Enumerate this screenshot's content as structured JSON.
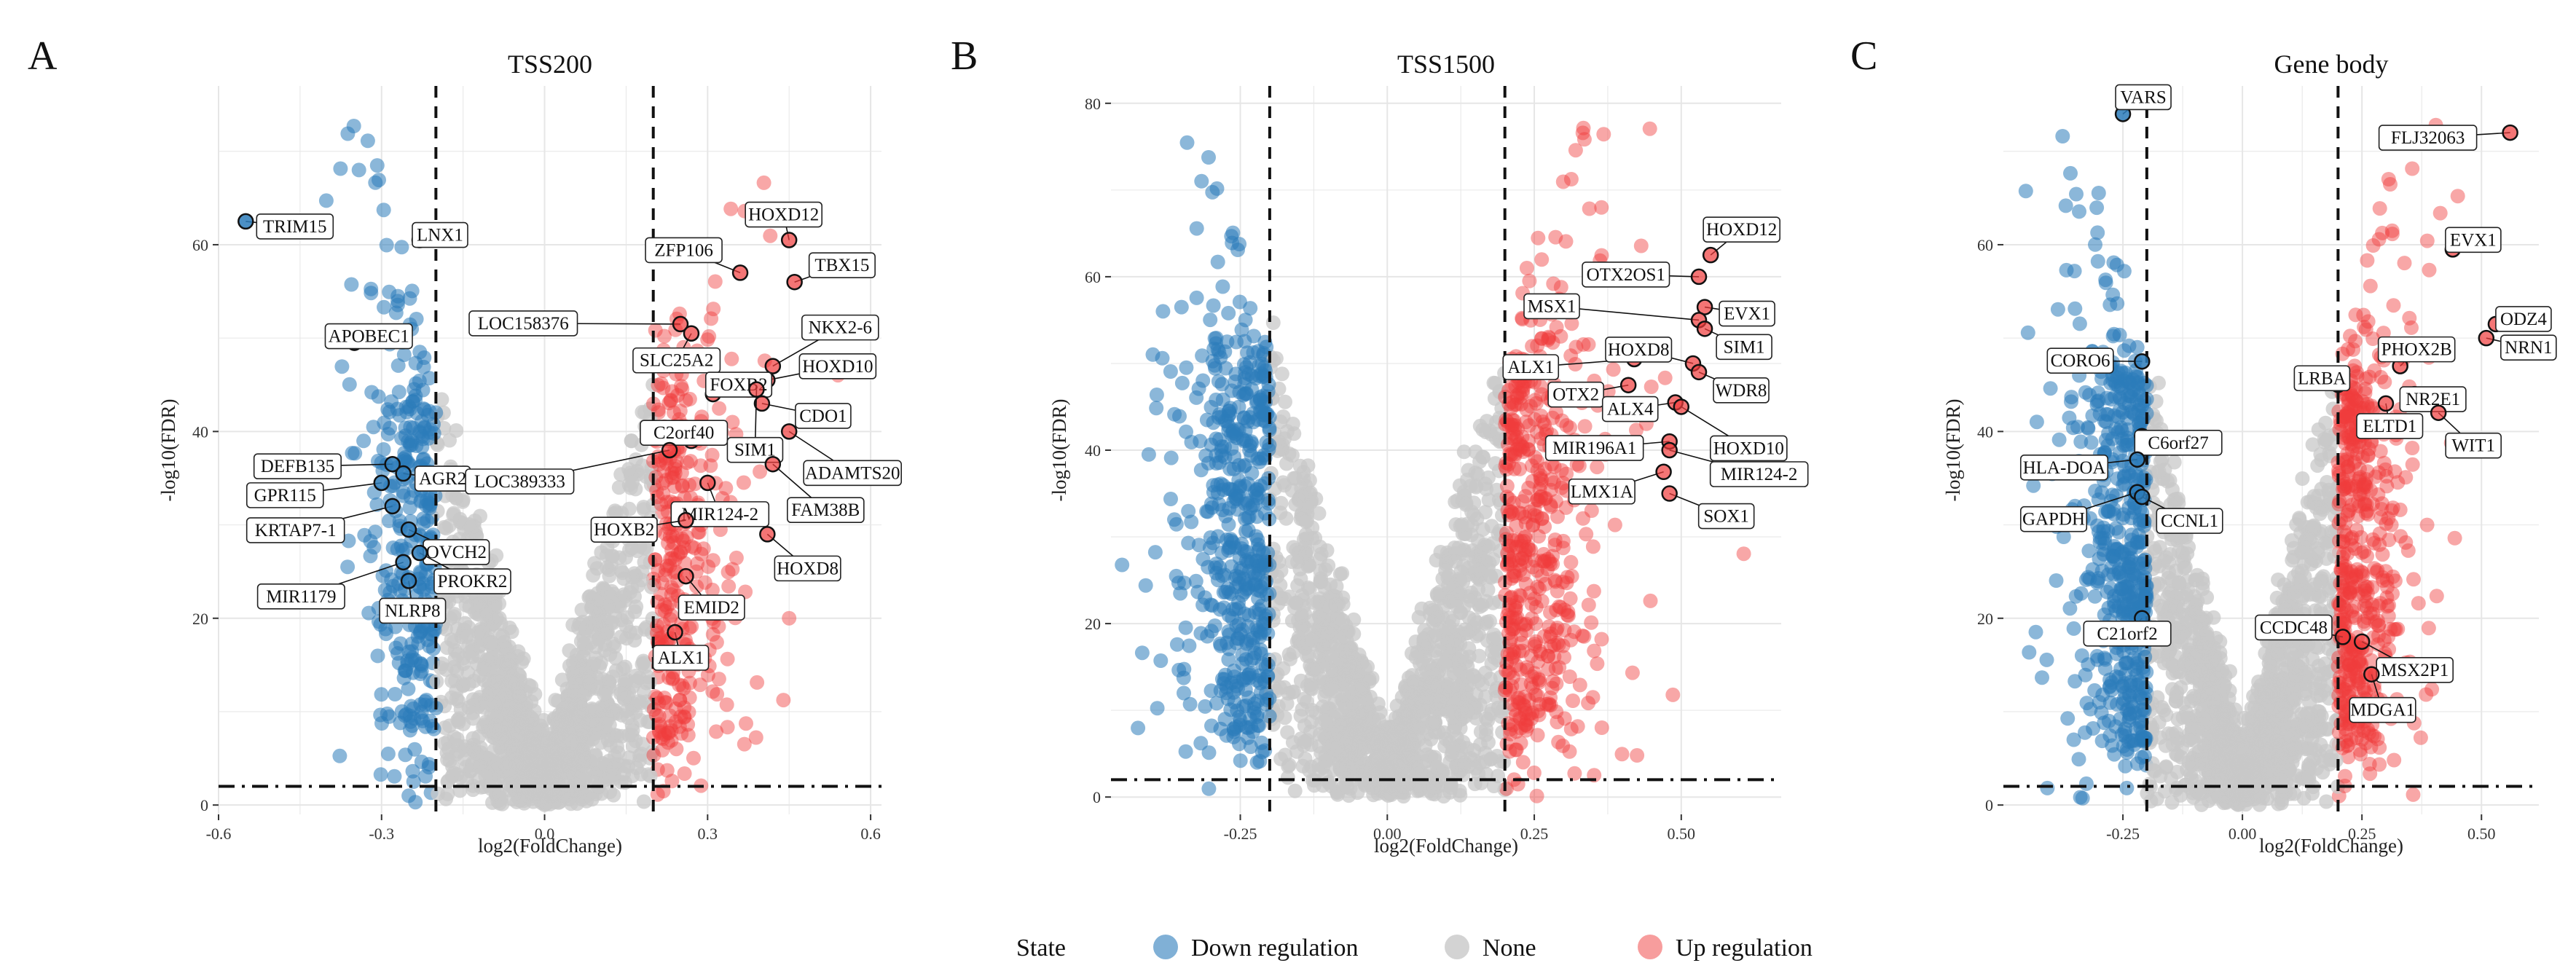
{
  "legend": {
    "title": "State",
    "items": [
      {
        "label": "Down regulation",
        "color": "#2b7bba"
      },
      {
        "label": "None",
        "color": "#c8c8c8"
      },
      {
        "label": "Up regulation",
        "color": "#f03b3b"
      }
    ]
  },
  "colors": {
    "down": "#2b7bba",
    "none": "#c8c8c8",
    "up": "#f03b3b"
  },
  "chart_data": [
    {
      "type": "scatter",
      "panel": "A",
      "title": "TSS200",
      "xlabel": "log2(FoldChange)",
      "ylabel": "-log10(FDR)",
      "xlim": [
        -0.6,
        0.62
      ],
      "ylim": [
        -1,
        77
      ],
      "xticks": [
        -0.6,
        -0.3,
        0.0,
        0.3,
        0.6
      ],
      "xtick_labels": [
        "-0.6",
        "-0.3",
        "0.0",
        "0.3",
        "0.6"
      ],
      "yticks": [
        0,
        20,
        40,
        60
      ],
      "yticks_labels": [
        "0",
        "20",
        "40",
        "60"
      ],
      "vlines": [
        -0.2,
        0.2
      ],
      "hline": 2,
      "grid": true,
      "labels": [
        {
          "text": "TRIM15",
          "x": -0.55,
          "y": 62.5,
          "state": "down"
        },
        {
          "text": "LNX1",
          "x": -0.23,
          "y": 60.5,
          "state": "down"
        },
        {
          "text": "APOBEC1",
          "x": -0.35,
          "y": 49.5,
          "state": "down"
        },
        {
          "text": "DEFB135",
          "x": -0.28,
          "y": 36.5,
          "state": "down"
        },
        {
          "text": "AGR2",
          "x": -0.26,
          "y": 35.5,
          "state": "down"
        },
        {
          "text": "GPR115",
          "x": -0.3,
          "y": 34.5,
          "state": "down"
        },
        {
          "text": "KRTAP7-1",
          "x": -0.28,
          "y": 32,
          "state": "down"
        },
        {
          "text": "OVCH2",
          "x": -0.25,
          "y": 29.5,
          "state": "down"
        },
        {
          "text": "MIR1179",
          "x": -0.26,
          "y": 26,
          "state": "down"
        },
        {
          "text": "PROKR2",
          "x": -0.23,
          "y": 27,
          "state": "down"
        },
        {
          "text": "NLRP8",
          "x": -0.25,
          "y": 24,
          "state": "down"
        },
        {
          "text": "HOXD12",
          "x": 0.45,
          "y": 60.5,
          "state": "up"
        },
        {
          "text": "TBX15",
          "x": 0.46,
          "y": 56,
          "state": "up"
        },
        {
          "text": "ZFP106",
          "x": 0.36,
          "y": 57,
          "state": "up"
        },
        {
          "text": "LOC158376",
          "x": 0.25,
          "y": 51.5,
          "state": "up"
        },
        {
          "text": "SLC25A2",
          "x": 0.27,
          "y": 50.5,
          "state": "up"
        },
        {
          "text": "NKX2-6",
          "x": 0.42,
          "y": 47,
          "state": "up"
        },
        {
          "text": "HOXD10",
          "x": 0.41,
          "y": 45.5,
          "state": "up"
        },
        {
          "text": "FOXB2",
          "x": 0.31,
          "y": 44,
          "state": "up"
        },
        {
          "text": "CDO1",
          "x": 0.4,
          "y": 43,
          "state": "up"
        },
        {
          "text": "C2orf40",
          "x": 0.27,
          "y": 39,
          "state": "up"
        },
        {
          "text": "SIM1",
          "x": 0.39,
          "y": 44.5,
          "state": "up"
        },
        {
          "text": "ADAMTS20",
          "x": 0.45,
          "y": 40,
          "state": "up"
        },
        {
          "text": "LOC389333",
          "x": 0.23,
          "y": 38,
          "state": "up"
        },
        {
          "text": "MIR124-2",
          "x": 0.3,
          "y": 34.5,
          "state": "up"
        },
        {
          "text": "FAM38B",
          "x": 0.42,
          "y": 36.5,
          "state": "up"
        },
        {
          "text": "HOXB2",
          "x": 0.26,
          "y": 30.5,
          "state": "up"
        },
        {
          "text": "HOXD8",
          "x": 0.41,
          "y": 29,
          "state": "up"
        },
        {
          "text": "EMID2",
          "x": 0.26,
          "y": 24.5,
          "state": "up"
        },
        {
          "text": "ALX1",
          "x": 0.24,
          "y": 18.5,
          "state": "up"
        }
      ]
    },
    {
      "type": "scatter",
      "panel": "B",
      "title": "TSS1500",
      "xlabel": "log2(FoldChange)",
      "ylabel": "-log10(FDR)",
      "xlim": [
        -0.47,
        0.67
      ],
      "ylim": [
        -2,
        82
      ],
      "xticks": [
        -0.25,
        0.0,
        0.25,
        0.5
      ],
      "xtick_labels": [
        "-0.25",
        "0.00",
        "0.25",
        "0.50"
      ],
      "yticks": [
        0,
        20,
        40,
        60,
        80
      ],
      "yticks_labels": [
        "0",
        "20",
        "40",
        "60",
        "80"
      ],
      "vlines": [
        -0.2,
        0.2
      ],
      "hline": 2,
      "grid": true,
      "labels": [
        {
          "text": "HOXD12",
          "x": 0.55,
          "y": 62.5,
          "state": "up"
        },
        {
          "text": "OTX2OS1",
          "x": 0.53,
          "y": 60,
          "state": "up"
        },
        {
          "text": "EVX1",
          "x": 0.54,
          "y": 56.5,
          "state": "up"
        },
        {
          "text": "MSX1",
          "x": 0.53,
          "y": 55,
          "state": "up"
        },
        {
          "text": "SIM1",
          "x": 0.54,
          "y": 54,
          "state": "up"
        },
        {
          "text": "ALX1",
          "x": 0.42,
          "y": 50.5,
          "state": "up"
        },
        {
          "text": "HOXD8",
          "x": 0.52,
          "y": 50,
          "state": "up"
        },
        {
          "text": "WDR8",
          "x": 0.53,
          "y": 49,
          "state": "up"
        },
        {
          "text": "OTX2",
          "x": 0.41,
          "y": 47.5,
          "state": "up"
        },
        {
          "text": "ALX4",
          "x": 0.49,
          "y": 45.5,
          "state": "up"
        },
        {
          "text": "HOXD10",
          "x": 0.5,
          "y": 45,
          "state": "up"
        },
        {
          "text": "MIR196A1",
          "x": 0.48,
          "y": 41,
          "state": "up"
        },
        {
          "text": "MIR124-2",
          "x": 0.48,
          "y": 40,
          "state": "up"
        },
        {
          "text": "LMX1A",
          "x": 0.47,
          "y": 37.5,
          "state": "up"
        },
        {
          "text": "SOX1",
          "x": 0.48,
          "y": 35,
          "state": "up"
        }
      ]
    },
    {
      "type": "scatter",
      "panel": "C",
      "title": "Gene body",
      "xlabel": "log2(FoldChange)",
      "ylabel": "-log10(FDR)",
      "xlim": [
        -0.5,
        0.62
      ],
      "ylim": [
        -1,
        77
      ],
      "xticks": [
        -0.25,
        0.0,
        0.25,
        0.5
      ],
      "xtick_labels": [
        "-0.25",
        "0.00",
        "0.25",
        "0.50"
      ],
      "yticks": [
        0,
        20,
        40,
        60
      ],
      "yticks_labels": [
        "0",
        "20",
        "40",
        "60"
      ],
      "vlines": [
        -0.2,
        0.2
      ],
      "hline": 2,
      "grid": true,
      "labels": [
        {
          "text": "VARS",
          "x": -0.25,
          "y": 74,
          "state": "down"
        },
        {
          "text": "CORO6",
          "x": -0.21,
          "y": 47.5,
          "state": "down"
        },
        {
          "text": "C6orf27",
          "x": -0.21,
          "y": 39.5,
          "state": "down"
        },
        {
          "text": "HLA-DOA",
          "x": -0.22,
          "y": 37,
          "state": "down"
        },
        {
          "text": "GAPDH",
          "x": -0.22,
          "y": 33.5,
          "state": "down"
        },
        {
          "text": "CCNL1",
          "x": -0.21,
          "y": 33,
          "state": "down"
        },
        {
          "text": "C21orf2",
          "x": -0.21,
          "y": 20,
          "state": "down"
        },
        {
          "text": "FLJ32063",
          "x": 0.56,
          "y": 72,
          "state": "up"
        },
        {
          "text": "EVX1",
          "x": 0.44,
          "y": 59.5,
          "state": "up"
        },
        {
          "text": "ODZ4",
          "x": 0.53,
          "y": 51.5,
          "state": "up"
        },
        {
          "text": "NRN1",
          "x": 0.51,
          "y": 50,
          "state": "up"
        },
        {
          "text": "PHOX2B",
          "x": 0.33,
          "y": 47,
          "state": "up"
        },
        {
          "text": "LRBA",
          "x": 0.2,
          "y": 45,
          "state": "up"
        },
        {
          "text": "NR2E1",
          "x": 0.36,
          "y": 44,
          "state": "up"
        },
        {
          "text": "ELTD1",
          "x": 0.3,
          "y": 43,
          "state": "up"
        },
        {
          "text": "WIT1",
          "x": 0.41,
          "y": 42,
          "state": "up"
        },
        {
          "text": "CCDC48",
          "x": 0.21,
          "y": 18,
          "state": "up"
        },
        {
          "text": "MSX2P1",
          "x": 0.25,
          "y": 17.5,
          "state": "up"
        },
        {
          "text": "MDGA1",
          "x": 0.27,
          "y": 14,
          "state": "up"
        }
      ]
    }
  ]
}
